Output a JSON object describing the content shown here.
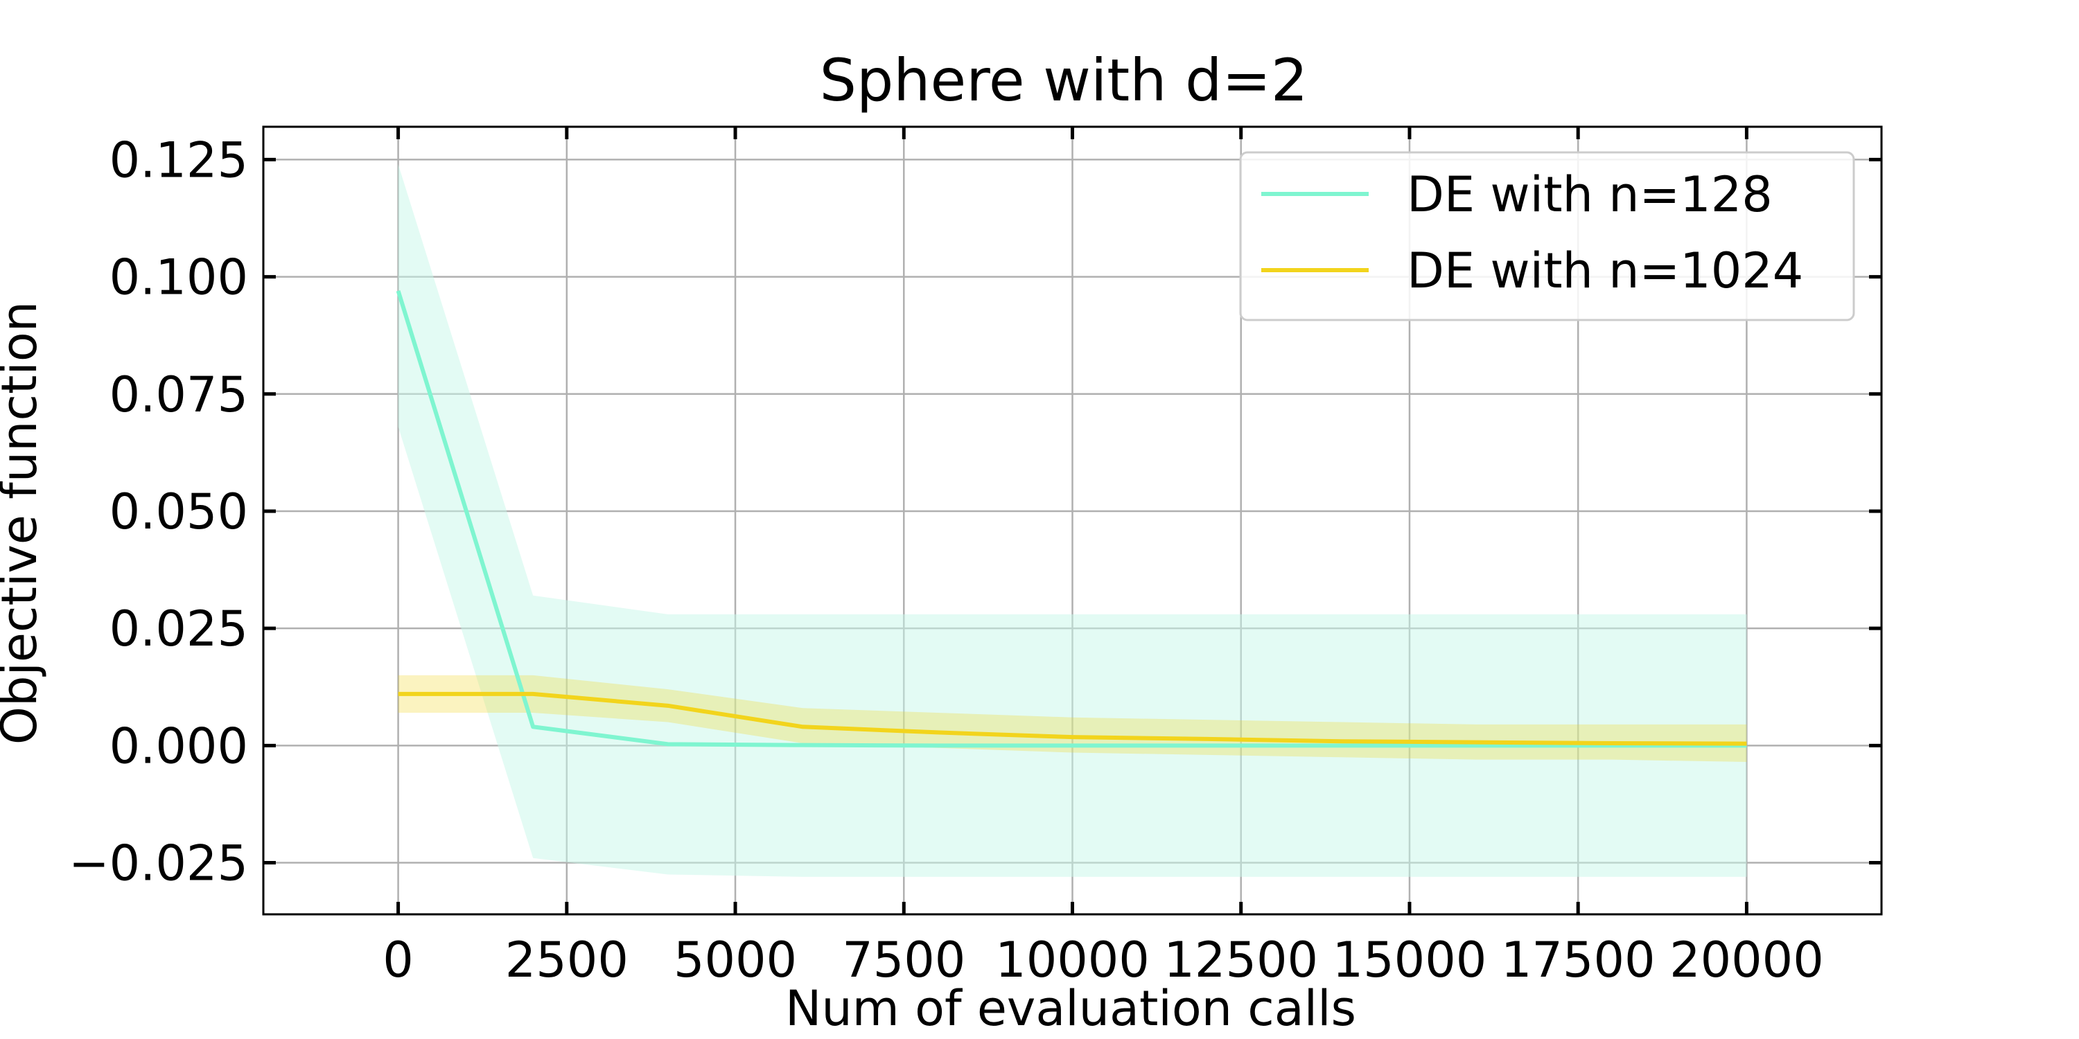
{
  "chart_data": {
    "type": "line",
    "title": "Sphere with d=2",
    "xlabel": "Num of evaluation calls",
    "ylabel": "Objective function",
    "xlim": [
      -2000,
      22000
    ],
    "ylim": [
      -0.036,
      0.132
    ],
    "x_ticks": [
      0,
      2500,
      5000,
      7500,
      10000,
      12500,
      15000,
      17500,
      20000
    ],
    "x_tick_labels": [
      "0",
      "2500",
      "5000",
      "7500",
      "10000",
      "12500",
      "15000",
      "17500",
      "20000"
    ],
    "y_ticks": [
      -0.025,
      0,
      0.025,
      0.05,
      0.075,
      0.1,
      0.125
    ],
    "y_tick_labels": [
      "−0.025",
      "0.000",
      "0.025",
      "0.050",
      "0.075",
      "0.100",
      "0.125"
    ],
    "grid": true,
    "legend_position": "top-right",
    "series": [
      {
        "name": "DE with n=128",
        "color": "#7ff5d0",
        "band_color": "#c8f8ea",
        "x": [
          0,
          2000,
          4000,
          6000,
          8000,
          10000,
          12000,
          14000,
          16000,
          18000,
          20000
        ],
        "y": [
          0.097,
          0.004,
          0.0003,
          0.0001,
          0.0,
          0.0,
          0.0,
          0.0,
          0.0,
          0.0,
          0.0
        ],
        "lower": [
          0.068,
          -0.024,
          -0.0275,
          -0.028,
          -0.028,
          -0.028,
          -0.028,
          -0.028,
          -0.028,
          -0.028,
          -0.028
        ],
        "upper": [
          0.124,
          0.032,
          0.028,
          0.028,
          0.028,
          0.028,
          0.028,
          0.028,
          0.028,
          0.028,
          0.028
        ]
      },
      {
        "name": "DE with n=1024",
        "color": "#f2d41c",
        "band_color": "#f2d41c",
        "x": [
          0,
          2000,
          4000,
          6000,
          8000,
          10000,
          12000,
          14000,
          16000,
          18000,
          20000
        ],
        "y": [
          0.011,
          0.011,
          0.0085,
          0.004,
          0.0028,
          0.0018,
          0.0014,
          0.0009,
          0.0007,
          0.0005,
          0.0004
        ],
        "lower": [
          0.007,
          0.007,
          0.005,
          0.0005,
          -0.0005,
          -0.0015,
          -0.002,
          -0.0025,
          -0.003,
          -0.003,
          -0.0035
        ],
        "upper": [
          0.015,
          0.015,
          0.012,
          0.008,
          0.007,
          0.006,
          0.0055,
          0.005,
          0.0045,
          0.0045,
          0.0045
        ]
      }
    ]
  }
}
